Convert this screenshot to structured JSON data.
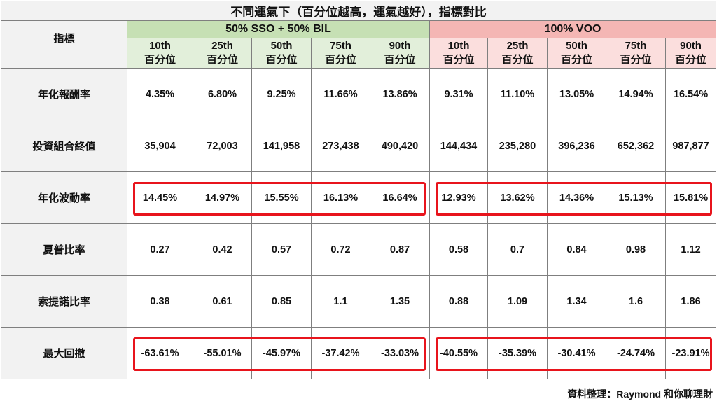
{
  "title": "不同運氣下（百分位越高，運氣越好），指標對比",
  "corner_label": "指標",
  "groups": [
    {
      "label": "50% SSO + 50% BIL",
      "color": "#c6e0b4"
    },
    {
      "label": "100% VOO",
      "color": "#f4b6b4"
    }
  ],
  "percentiles": [
    {
      "top": "10th",
      "bottom": "百分位"
    },
    {
      "top": "25th",
      "bottom": "百分位"
    },
    {
      "top": "50th",
      "bottom": "百分位"
    },
    {
      "top": "75th",
      "bottom": "百分位"
    },
    {
      "top": "90th",
      "bottom": "百分位"
    },
    {
      "top": "10th",
      "bottom": "百分位"
    },
    {
      "top": "25th",
      "bottom": "百分位"
    },
    {
      "top": "50th",
      "bottom": "百分位"
    },
    {
      "top": "75th",
      "bottom": "百分位"
    },
    {
      "top": "90th",
      "bottom": "百分位"
    }
  ],
  "rows": [
    {
      "label": "年化報酬率",
      "values": [
        "4.35%",
        "6.80%",
        "9.25%",
        "11.66%",
        "13.86%",
        "9.31%",
        "11.10%",
        "13.05%",
        "14.94%",
        "16.54%"
      ],
      "highlighted": false
    },
    {
      "label": "投資組合終值",
      "values": [
        "35,904",
        "72,003",
        "141,958",
        "273,438",
        "490,420",
        "144,434",
        "235,280",
        "396,236",
        "652,362",
        "987,877"
      ],
      "highlighted": false
    },
    {
      "label": "年化波動率",
      "values": [
        "14.45%",
        "14.97%",
        "15.55%",
        "16.13%",
        "16.64%",
        "12.93%",
        "13.62%",
        "14.36%",
        "15.13%",
        "15.81%"
      ],
      "highlighted": true
    },
    {
      "label": "夏普比率",
      "values": [
        "0.27",
        "0.42",
        "0.57",
        "0.72",
        "0.87",
        "0.58",
        "0.7",
        "0.84",
        "0.98",
        "1.12"
      ],
      "highlighted": false
    },
    {
      "label": "索提諾比率",
      "values": [
        "0.38",
        "0.61",
        "0.85",
        "1.1",
        "1.35",
        "0.88",
        "1.09",
        "1.34",
        "1.6",
        "1.86"
      ],
      "highlighted": false
    },
    {
      "label": "最大回撤",
      "values": [
        "-63.61%",
        "-55.01%",
        "-45.97%",
        "-37.42%",
        "-33.03%",
        "-40.55%",
        "-35.39%",
        "-30.41%",
        "-24.74%",
        "-23.91%"
      ],
      "highlighted": true
    }
  ],
  "highlight_color": "#e8141c",
  "credit": "資料整理：Raymond 和你聊理財"
}
